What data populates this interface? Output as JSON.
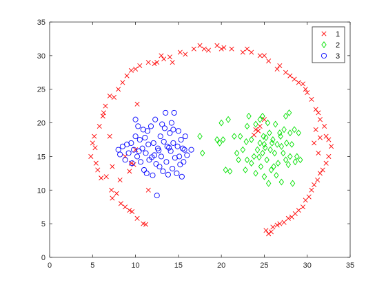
{
  "chart_data": {
    "type": "scatter",
    "title": "",
    "xlabel": "",
    "ylabel": "",
    "xlim": [
      0,
      35
    ],
    "ylim": [
      0,
      35
    ],
    "xticks": [
      0,
      5,
      10,
      15,
      20,
      25,
      30,
      35
    ],
    "yticks": [
      0,
      5,
      10,
      15,
      20,
      25,
      30,
      35
    ],
    "grid": false,
    "legend": "top-right",
    "series": [
      {
        "name": "1",
        "marker": "x",
        "color": "#ff0000",
        "points": [
          [
            4.8,
            15.0
          ],
          [
            5.0,
            17.0
          ],
          [
            5.2,
            18.0
          ],
          [
            5.3,
            16.3
          ],
          [
            5.4,
            14.0
          ],
          [
            5.6,
            13.0
          ],
          [
            5.8,
            19.5
          ],
          [
            6.0,
            11.8
          ],
          [
            6.2,
            21.0
          ],
          [
            6.3,
            21.5
          ],
          [
            6.5,
            22.5
          ],
          [
            6.6,
            12.0
          ],
          [
            7.0,
            24.0
          ],
          [
            7.2,
            10.0
          ],
          [
            7.3,
            8.8
          ],
          [
            7.5,
            23.8
          ],
          [
            7.8,
            9.5
          ],
          [
            8.0,
            25.0
          ],
          [
            8.3,
            8.0
          ],
          [
            8.5,
            26.0
          ],
          [
            8.8,
            7.5
          ],
          [
            9.0,
            27.0
          ],
          [
            9.3,
            7.0
          ],
          [
            9.5,
            27.8
          ],
          [
            9.6,
            6.8
          ],
          [
            10.0,
            28.0
          ],
          [
            10.2,
            5.8
          ],
          [
            10.5,
            28.5
          ],
          [
            10.9,
            5.0
          ],
          [
            11.2,
            4.9
          ],
          [
            11.5,
            29.0
          ],
          [
            12.2,
            28.8
          ],
          [
            12.5,
            29.0
          ],
          [
            13.0,
            30.0
          ],
          [
            13.3,
            29.5
          ],
          [
            14.0,
            29.8
          ],
          [
            14.3,
            29.0
          ],
          [
            15.2,
            30.5
          ],
          [
            15.8,
            30.2
          ],
          [
            16.8,
            31.0
          ],
          [
            17.5,
            31.5
          ],
          [
            18.0,
            31.0
          ],
          [
            18.5,
            30.8
          ],
          [
            19.5,
            31.5
          ],
          [
            20.0,
            31.0
          ],
          [
            20.3,
            31.2
          ],
          [
            21.2,
            31.0
          ],
          [
            22.5,
            30.5
          ],
          [
            23.0,
            31.0
          ],
          [
            23.5,
            30.5
          ],
          [
            24.5,
            30.0
          ],
          [
            25.0,
            30.0
          ],
          [
            25.5,
            29.2
          ],
          [
            26.5,
            28.0
          ],
          [
            26.8,
            28.5
          ],
          [
            27.5,
            27.5
          ],
          [
            28.0,
            27.0
          ],
          [
            28.5,
            26.5
          ],
          [
            29.0,
            26.0
          ],
          [
            29.5,
            25.8
          ],
          [
            29.8,
            25.0
          ],
          [
            30.0,
            24.5
          ],
          [
            30.5,
            23.5
          ],
          [
            31.0,
            22.0
          ],
          [
            31.3,
            21.5
          ],
          [
            31.5,
            20.5
          ],
          [
            32.0,
            19.5
          ],
          [
            32.2,
            18.0
          ],
          [
            32.5,
            17.5
          ],
          [
            32.8,
            16.5
          ],
          [
            32.5,
            15.0
          ],
          [
            32.2,
            14.0
          ],
          [
            31.8,
            13.0
          ],
          [
            31.5,
            12.5
          ],
          [
            31.2,
            11.5
          ],
          [
            30.8,
            10.8
          ],
          [
            30.5,
            10.0
          ],
          [
            30.2,
            9.0
          ],
          [
            29.8,
            8.5
          ],
          [
            29.5,
            7.5
          ],
          [
            29.0,
            7.0
          ],
          [
            28.6,
            6.5
          ],
          [
            28.2,
            6.0
          ],
          [
            27.8,
            5.8
          ],
          [
            27.3,
            5.2
          ],
          [
            26.8,
            5.0
          ],
          [
            26.5,
            4.8
          ],
          [
            26.0,
            4.5
          ],
          [
            25.8,
            3.8
          ],
          [
            25.5,
            3.5
          ],
          [
            25.2,
            4.0
          ],
          [
            24.5,
            19.5
          ],
          [
            24.3,
            18.8
          ],
          [
            23.8,
            18.2
          ],
          [
            25.0,
            20.5
          ],
          [
            24.0,
            19.0
          ],
          [
            31.5,
            17.8
          ],
          [
            31.0,
            19.0
          ],
          [
            30.8,
            17.0
          ],
          [
            31.3,
            15.5
          ],
          [
            10.2,
            22.8
          ],
          [
            9.8,
            13.8
          ],
          [
            9.5,
            14.0
          ],
          [
            8.8,
            15.0
          ],
          [
            8.2,
            11.5
          ],
          [
            7.0,
            18.0
          ],
          [
            7.3,
            13.5
          ],
          [
            9.3,
            12.8
          ],
          [
            10.0,
            16.0
          ],
          [
            11.5,
            10.0
          ]
        ]
      },
      {
        "name": "2",
        "marker": "diamond",
        "color": "#00e000",
        "points": [
          [
            17.5,
            18.0
          ],
          [
            17.8,
            15.5
          ],
          [
            19.5,
            17.5
          ],
          [
            19.8,
            17.0
          ],
          [
            20.0,
            20.0
          ],
          [
            20.2,
            17.5
          ],
          [
            20.5,
            13.0
          ],
          [
            20.8,
            20.5
          ],
          [
            21.0,
            12.8
          ],
          [
            21.5,
            18.0
          ],
          [
            21.8,
            15.5
          ],
          [
            22.0,
            14.5
          ],
          [
            22.2,
            18.0
          ],
          [
            22.5,
            16.0
          ],
          [
            22.8,
            13.0
          ],
          [
            23.0,
            14.5
          ],
          [
            23.0,
            19.5
          ],
          [
            23.2,
            21.0
          ],
          [
            23.5,
            14.0
          ],
          [
            23.5,
            17.5
          ],
          [
            23.8,
            15.0
          ],
          [
            24.0,
            19.8
          ],
          [
            24.0,
            12.5
          ],
          [
            24.2,
            16.0
          ],
          [
            24.5,
            17.0
          ],
          [
            24.5,
            20.5
          ],
          [
            24.6,
            13.5
          ],
          [
            24.8,
            15.5
          ],
          [
            24.9,
            18.0
          ],
          [
            25.0,
            16.8
          ],
          [
            25.0,
            12.0
          ],
          [
            25.2,
            17.8
          ],
          [
            25.3,
            14.5
          ],
          [
            25.4,
            20.0
          ],
          [
            25.5,
            11.0
          ],
          [
            25.6,
            18.5
          ],
          [
            25.7,
            16.0
          ],
          [
            25.8,
            13.0
          ],
          [
            26.0,
            17.5
          ],
          [
            26.2,
            15.5
          ],
          [
            26.3,
            19.8
          ],
          [
            26.4,
            12.2
          ],
          [
            26.5,
            16.8
          ],
          [
            26.6,
            14.0
          ],
          [
            26.8,
            18.5
          ],
          [
            27.0,
            16.5
          ],
          [
            27.0,
            11.2
          ],
          [
            27.2,
            15.5
          ],
          [
            27.3,
            19.0
          ],
          [
            27.5,
            14.5
          ],
          [
            27.5,
            21.0
          ],
          [
            27.6,
            17.0
          ],
          [
            27.8,
            13.8
          ],
          [
            28.0,
            18.5
          ],
          [
            28.0,
            15.0
          ],
          [
            28.2,
            16.8
          ],
          [
            28.3,
            11.0
          ],
          [
            28.5,
            19.0
          ],
          [
            28.6,
            14.2
          ],
          [
            28.8,
            15.0
          ],
          [
            29.0,
            18.5
          ],
          [
            29.2,
            14.5
          ],
          [
            27.9,
            21.5
          ],
          [
            26.9,
            18.0
          ],
          [
            24.8,
            21.0
          ],
          [
            25.9,
            17.0
          ],
          [
            26.1,
            13.5
          ],
          [
            22.9,
            17.2
          ],
          [
            24.4,
            14.9
          ],
          [
            25.1,
            16.3
          ]
        ]
      },
      {
        "name": "3",
        "marker": "circle",
        "color": "#0000ff",
        "points": [
          [
            8.0,
            16.0
          ],
          [
            8.2,
            15.3
          ],
          [
            8.5,
            16.5
          ],
          [
            8.8,
            14.5
          ],
          [
            9.0,
            16.8
          ],
          [
            9.2,
            15.5
          ],
          [
            9.5,
            17.0
          ],
          [
            9.6,
            14.0
          ],
          [
            9.8,
            16.0
          ],
          [
            10.0,
            20.5
          ],
          [
            10.0,
            18.0
          ],
          [
            10.2,
            15.0
          ],
          [
            10.3,
            19.5
          ],
          [
            10.5,
            17.5
          ],
          [
            10.6,
            14.2
          ],
          [
            10.8,
            16.2
          ],
          [
            10.9,
            19.0
          ],
          [
            11.0,
            13.0
          ],
          [
            11.1,
            17.8
          ],
          [
            11.2,
            15.5
          ],
          [
            11.3,
            12.5
          ],
          [
            11.4,
            18.8
          ],
          [
            11.5,
            16.8
          ],
          [
            11.6,
            14.5
          ],
          [
            11.8,
            19.5
          ],
          [
            12.0,
            12.2
          ],
          [
            12.1,
            17.0
          ],
          [
            12.2,
            15.2
          ],
          [
            12.3,
            20.5
          ],
          [
            12.5,
            9.2
          ],
          [
            12.6,
            16.2
          ],
          [
            12.8,
            13.5
          ],
          [
            12.9,
            18.0
          ],
          [
            13.0,
            15.0
          ],
          [
            13.1,
            19.8
          ],
          [
            13.2,
            12.8
          ],
          [
            13.3,
            17.2
          ],
          [
            13.5,
            21.5
          ],
          [
            13.6,
            14.2
          ],
          [
            13.7,
            16.5
          ],
          [
            13.8,
            12.3
          ],
          [
            14.0,
            18.5
          ],
          [
            14.1,
            15.8
          ],
          [
            14.2,
            20.0
          ],
          [
            14.3,
            13.2
          ],
          [
            14.4,
            17.0
          ],
          [
            14.5,
            21.5
          ],
          [
            14.6,
            14.8
          ],
          [
            14.8,
            12.5
          ],
          [
            14.9,
            16.5
          ],
          [
            15.0,
            18.8
          ],
          [
            15.1,
            15.0
          ],
          [
            15.2,
            13.8
          ],
          [
            15.3,
            17.5
          ],
          [
            15.4,
            12.0
          ],
          [
            15.5,
            16.2
          ],
          [
            15.6,
            14.2
          ],
          [
            15.8,
            18.0
          ],
          [
            16.0,
            15.2
          ],
          [
            16.5,
            16.0
          ],
          [
            14.4,
            19.0
          ],
          [
            13.4,
            19.2
          ],
          [
            12.4,
            13.9
          ],
          [
            11.9,
            14.9
          ],
          [
            10.4,
            15.8
          ],
          [
            15.7,
            16.0
          ],
          [
            13.9,
            16.3
          ],
          [
            12.7,
            15.9
          ]
        ]
      }
    ]
  }
}
